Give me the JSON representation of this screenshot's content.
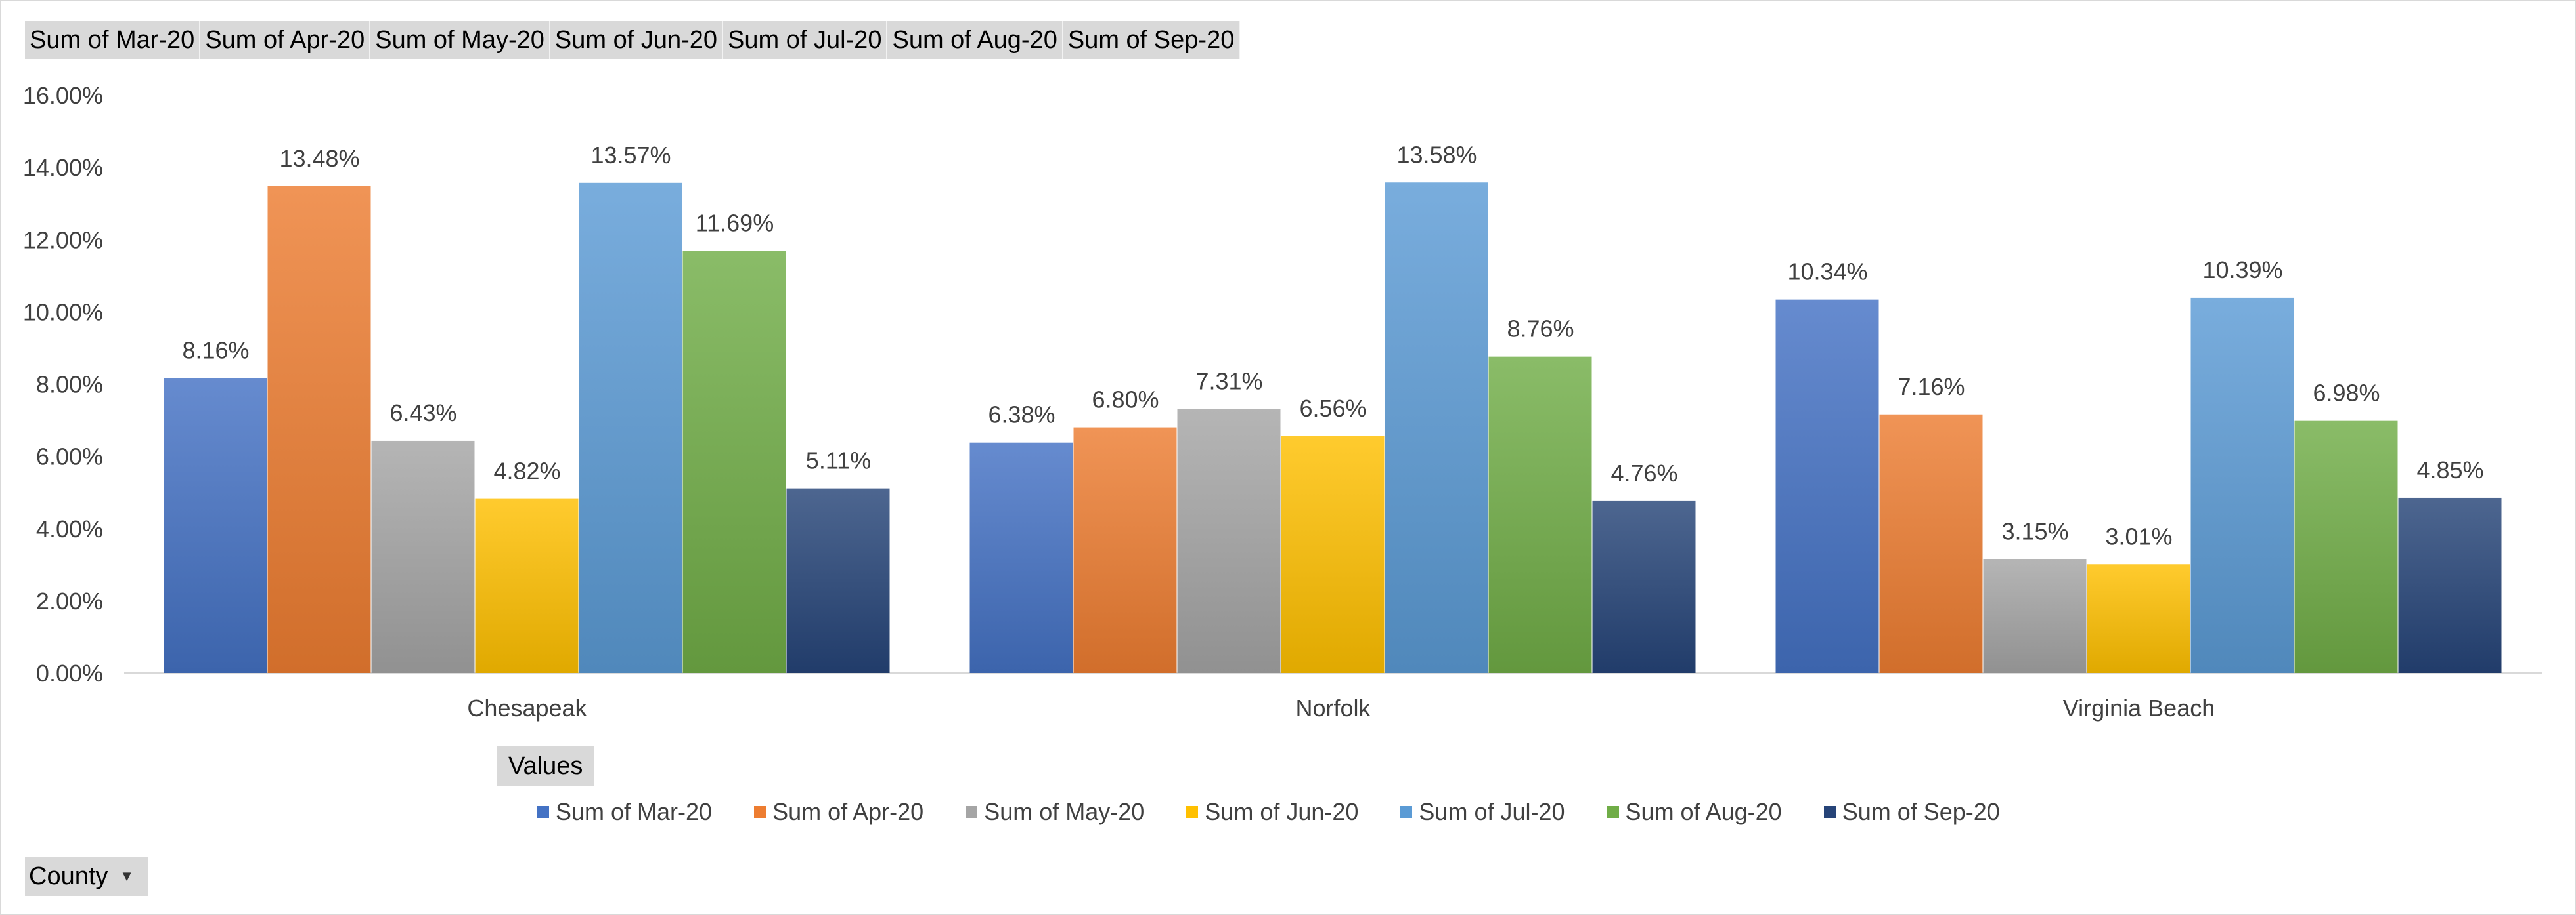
{
  "field_buttons": [
    "Sum of Mar-20",
    "Sum of Apr-20",
    "Sum of May-20",
    "Sum of Jun-20",
    "Sum of Jul-20",
    "Sum of Aug-20",
    "Sum of Sep-20"
  ],
  "values_button": "Values",
  "county_filter": {
    "label": "County",
    "dropdown_icon": "chevron-down-icon"
  },
  "chart_data": {
    "type": "bar",
    "categories": [
      "Chesapeak",
      "Norfolk",
      "Virginia Beach"
    ],
    "series": [
      {
        "name": "Sum of Mar-20",
        "color": "#4472c4",
        "values": [
          8.16,
          6.38,
          10.34
        ]
      },
      {
        "name": "Sum of Apr-20",
        "color": "#ed7d31",
        "values": [
          13.48,
          6.8,
          7.16
        ]
      },
      {
        "name": "Sum of May-20",
        "color": "#a5a5a5",
        "values": [
          6.43,
          7.31,
          3.15
        ]
      },
      {
        "name": "Sum of Jun-20",
        "color": "#ffc000",
        "values": [
          4.82,
          6.56,
          3.01
        ]
      },
      {
        "name": "Sum of Jul-20",
        "color": "#5b9bd5",
        "values": [
          13.57,
          13.58,
          10.39
        ]
      },
      {
        "name": "Sum of Aug-20",
        "color": "#70ad47",
        "values": [
          11.69,
          8.76,
          6.98
        ]
      },
      {
        "name": "Sum of Sep-20",
        "color": "#264478",
        "values": [
          5.11,
          4.76,
          4.85
        ]
      }
    ],
    "data_labels": [
      [
        "8.16%",
        "6.38%",
        "10.34%"
      ],
      [
        "13.48%",
        "6.80%",
        "7.16%"
      ],
      [
        "6.43%",
        "7.31%",
        "3.15%"
      ],
      [
        "4.82%",
        "6.56%",
        "3.01%"
      ],
      [
        "13.57%",
        "13.58%",
        "10.39%"
      ],
      [
        "11.69%",
        "8.76%",
        "6.98%"
      ],
      [
        "5.11%",
        "4.76%",
        "4.85%"
      ]
    ],
    "ylim": [
      0,
      16
    ],
    "y_ticks": [
      0,
      2,
      4,
      6,
      8,
      10,
      12,
      14,
      16
    ],
    "y_tick_labels": [
      "0.00%",
      "2.00%",
      "4.00%",
      "6.00%",
      "8.00%",
      "10.00%",
      "12.00%",
      "14.00%",
      "16.00%"
    ],
    "grid": false,
    "legend_position": "bottom"
  }
}
